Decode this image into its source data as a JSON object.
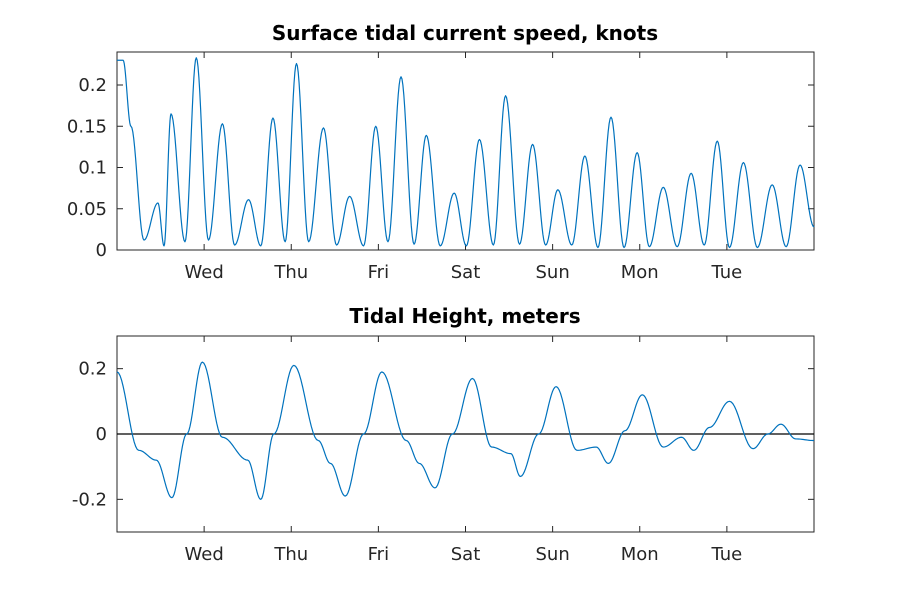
{
  "chart_data": [
    {
      "type": "line",
      "title": "Surface tidal current speed, knots",
      "xlabel": "",
      "ylabel": "",
      "x_ticks": [
        "Wed",
        "Thu",
        "Fri",
        "Sat",
        "Sun",
        "Mon",
        "Tue"
      ],
      "y_ticks": [
        "0",
        "0.05",
        "0.1",
        "0.15",
        "0.2"
      ],
      "y_tick_values": [
        0,
        0.05,
        0.1,
        0.15,
        0.2
      ],
      "ylim": [
        0,
        0.24
      ],
      "xlim_days": [
        0,
        8
      ],
      "grid": false,
      "series": [
        {
          "color": "#0072BD",
          "extrema_days": [
            0.0,
            0.07,
            0.16,
            0.31,
            0.47,
            0.54,
            0.62,
            0.78,
            0.91,
            1.05,
            1.21,
            1.35,
            1.51,
            1.65,
            1.79,
            1.93,
            2.06,
            2.2,
            2.37,
            2.52,
            2.67,
            2.83,
            2.97,
            3.11,
            3.26,
            3.41,
            3.55,
            3.71,
            3.87,
            4.01,
            4.16,
            4.32,
            4.46,
            4.62,
            4.77,
            4.92,
            5.06,
            5.22,
            5.37,
            5.52,
            5.67,
            5.82,
            5.97,
            6.11,
            6.27,
            6.43,
            6.59,
            6.74,
            6.89,
            7.03,
            7.19,
            7.35,
            7.52,
            7.68,
            7.84,
            8.0
          ],
          "extrema_values": [
            0.23,
            0.23,
            0.15,
            0.012,
            0.057,
            0.005,
            0.165,
            0.01,
            0.233,
            0.012,
            0.153,
            0.006,
            0.061,
            0.005,
            0.16,
            0.01,
            0.226,
            0.01,
            0.148,
            0.006,
            0.065,
            0.005,
            0.15,
            0.01,
            0.21,
            0.007,
            0.139,
            0.005,
            0.069,
            0.005,
            0.134,
            0.006,
            0.187,
            0.007,
            0.128,
            0.006,
            0.073,
            0.006,
            0.114,
            0.003,
            0.161,
            0.003,
            0.118,
            0.004,
            0.076,
            0.004,
            0.093,
            0.006,
            0.132,
            0.003,
            0.106,
            0.003,
            0.079,
            0.004,
            0.103,
            0.028
          ]
        }
      ]
    },
    {
      "type": "line",
      "title": "Tidal Height, meters",
      "xlabel": "",
      "ylabel": "",
      "x_ticks": [
        "Wed",
        "Thu",
        "Fri",
        "Sat",
        "Sun",
        "Mon",
        "Tue"
      ],
      "y_ticks": [
        "-0.2",
        "0",
        "0.2"
      ],
      "y_tick_values": [
        -0.2,
        0,
        0.2
      ],
      "ylim": [
        -0.3,
        0.3
      ],
      "xlim_days": [
        0,
        8
      ],
      "grid": false,
      "zero_line": true,
      "series": [
        {
          "color": "#0072BD",
          "days": [
            0.0,
            0.25,
            0.45,
            0.63,
            0.8,
            0.98,
            1.21,
            1.5,
            1.65,
            1.8,
            2.03,
            2.31,
            2.45,
            2.62,
            2.83,
            3.04,
            3.32,
            3.47,
            3.65,
            3.85,
            4.08,
            4.3,
            4.52,
            4.63,
            4.84,
            5.04,
            5.28,
            5.5,
            5.64,
            5.83,
            6.03,
            6.27,
            6.48,
            6.62,
            6.8,
            7.03,
            7.3,
            7.47,
            7.62,
            7.79,
            8.0
          ],
          "values": [
            0.19,
            -0.05,
            -0.08,
            -0.195,
            0.0,
            0.22,
            -0.01,
            -0.08,
            -0.2,
            0.0,
            0.21,
            -0.02,
            -0.09,
            -0.19,
            0.0,
            0.19,
            -0.02,
            -0.09,
            -0.165,
            0.0,
            0.17,
            -0.04,
            -0.06,
            -0.13,
            0.0,
            0.145,
            -0.05,
            -0.04,
            -0.09,
            0.01,
            0.12,
            -0.04,
            -0.01,
            -0.05,
            0.02,
            0.1,
            -0.045,
            0.0,
            0.03,
            -0.015,
            -0.02
          ]
        }
      ]
    }
  ]
}
